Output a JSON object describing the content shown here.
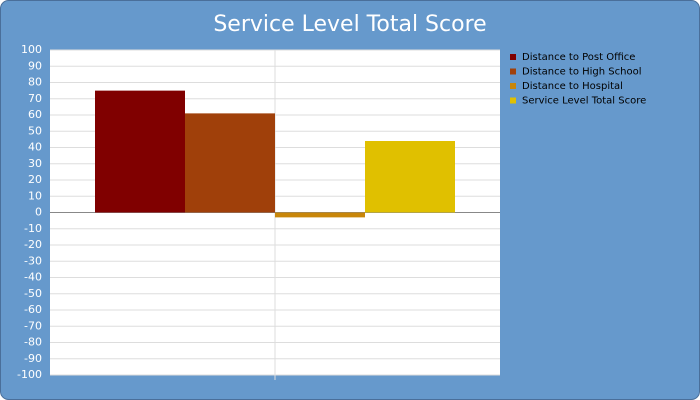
{
  "chart_data": {
    "type": "bar",
    "title": "Service Level Total Score",
    "categories": [
      null
    ],
    "series": [
      {
        "name": "Distance to Post Office",
        "color": "#800000",
        "values": [
          75
        ]
      },
      {
        "name": "Distance to High School",
        "color": "#a0400a",
        "values": [
          61
        ]
      },
      {
        "name": "Distance to Hospital",
        "color": "#c8860a",
        "values": [
          -3
        ]
      },
      {
        "name": "Service Level Total Score",
        "color": "#e0c000",
        "values": [
          44
        ]
      }
    ],
    "ylim": [
      -100,
      100
    ],
    "yticks": [
      -100,
      -90,
      -80,
      -70,
      -60,
      -50,
      -40,
      -30,
      -20,
      -10,
      0,
      10,
      20,
      30,
      40,
      50,
      60,
      70,
      80,
      90,
      100
    ],
    "grid": true,
    "legend": "right"
  }
}
